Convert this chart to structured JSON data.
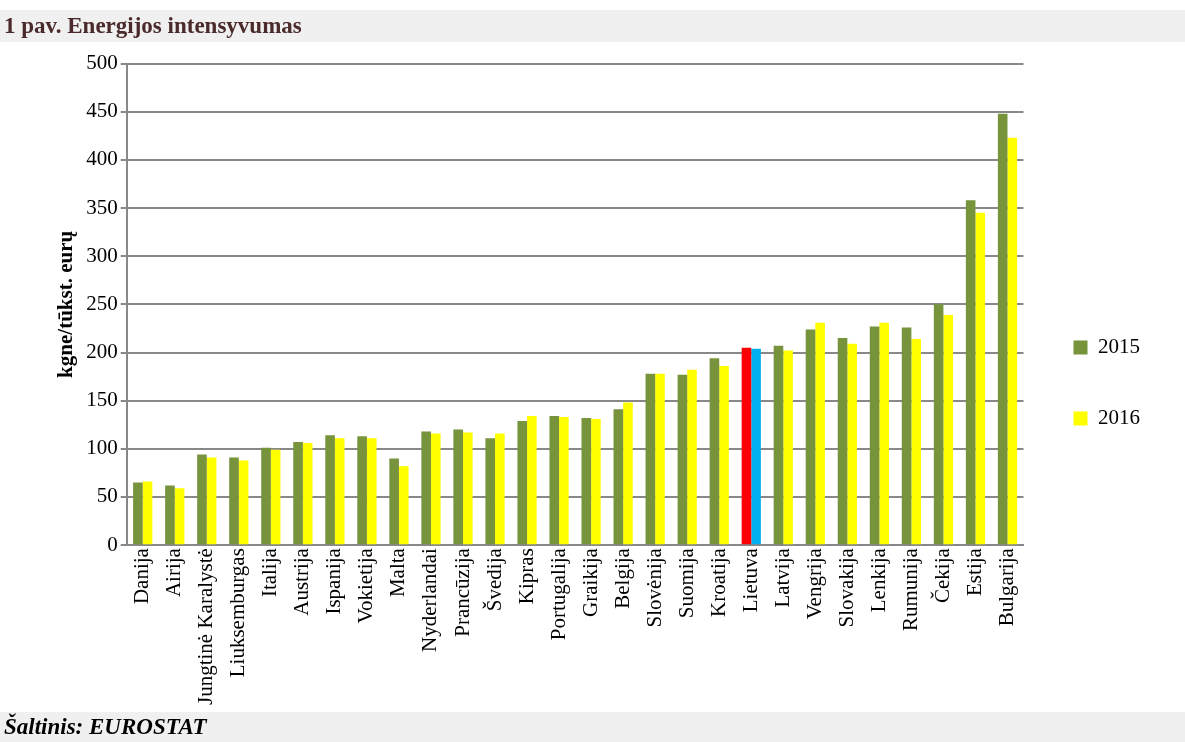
{
  "chart_data": {
    "type": "bar",
    "title": "1 pav. Energijos intensyvumas",
    "ylabel": "kgne/tūkst. eurų",
    "categories": [
      "Danija",
      "Airija",
      "Jungtinė Karalystė",
      "Liuksemburgas",
      "Italija",
      "Austrija",
      "Ispanija",
      "Vokietija",
      "Malta",
      "Nyderlandai",
      "Prancūzija",
      "Švedija",
      "Kipras",
      "Portugalija",
      "Graikija",
      "Belgija",
      "Slovėnija",
      "Suomija",
      "Kroatija",
      "Lietuva",
      "Latvija",
      "Vengrija",
      "Slovakija",
      "Lenkija",
      "Rumunija",
      "Čekija",
      "Estija",
      "Bulgarija"
    ],
    "series": [
      {
        "name": "2015",
        "color": "#77933c",
        "colors": [
          "#77933c",
          "#77933c",
          "#77933c",
          "#77933c",
          "#77933c",
          "#77933c",
          "#77933c",
          "#77933c",
          "#77933c",
          "#77933c",
          "#77933c",
          "#77933c",
          "#77933c",
          "#77933c",
          "#77933c",
          "#77933c",
          "#77933c",
          "#77933c",
          "#77933c",
          "#ff0000",
          "#77933c",
          "#77933c",
          "#77933c",
          "#77933c",
          "#77933c",
          "#77933c",
          "#77933c",
          "#77933c"
        ],
        "values": [
          65,
          62,
          94,
          91,
          101,
          107,
          114,
          113,
          90,
          118,
          120,
          111,
          129,
          134,
          132,
          141,
          178,
          177,
          194,
          205,
          207,
          224,
          215,
          227,
          226,
          250,
          358,
          448
        ]
      },
      {
        "name": "2016",
        "color": "#ffff00",
        "colors": [
          "#ffff00",
          "#ffff00",
          "#ffff00",
          "#ffff00",
          "#ffff00",
          "#ffff00",
          "#ffff00",
          "#ffff00",
          "#ffff00",
          "#ffff00",
          "#ffff00",
          "#ffff00",
          "#ffff00",
          "#ffff00",
          "#ffff00",
          "#ffff00",
          "#ffff00",
          "#ffff00",
          "#ffff00",
          "#00b0f0",
          "#ffff00",
          "#ffff00",
          "#ffff00",
          "#ffff00",
          "#ffff00",
          "#ffff00",
          "#ffff00",
          "#ffff00"
        ],
        "values": [
          66,
          59,
          91,
          88,
          99,
          106,
          111,
          111,
          82,
          116,
          117,
          116,
          134,
          133,
          131,
          148,
          178,
          182,
          186,
          204,
          202,
          231,
          209,
          231,
          214,
          239,
          345,
          423
        ]
      }
    ],
    "ylim": [
      0,
      500
    ],
    "yticks": [
      0,
      50,
      100,
      150,
      200,
      250,
      300,
      350,
      400,
      450,
      500
    ],
    "grid": "y",
    "legend": "right",
    "annotations": [
      "Šaltinis: EUROSTAT"
    ]
  }
}
